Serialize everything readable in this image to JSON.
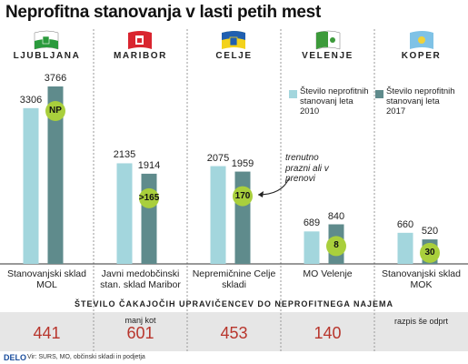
{
  "chart_data": {
    "type": "bar",
    "title": "Neprofitna stanovanja v lasti petih mest",
    "categories": [
      "LJUBLJANA",
      "MARIBOR",
      "CELJE",
      "VELENJE",
      "KOPER"
    ],
    "series": [
      {
        "name": "Število neprofitnih stanovanj leta 2010",
        "color": "#a3d6dd",
        "values": [
          3306,
          2135,
          2075,
          689,
          660
        ]
      },
      {
        "name": "Število neprofitnih stanovanj leta 2017",
        "color": "#5f8b8c",
        "values": [
          3766,
          1914,
          1959,
          840,
          520
        ]
      }
    ],
    "vacant_labels": [
      "NP",
      ">165",
      170,
      8,
      30
    ],
    "vacant_color": "#a9cf3c",
    "annotation": "trenutno prazni ali v prenovi",
    "owners": [
      "Stanovanjski sklad MOL",
      "Javni medobčinski stan. sklad Maribor",
      "Nepremičnine Celje skladi",
      "MO Velenje",
      "Stanovanjski sklad MOK"
    ],
    "waiting": {
      "title": "ŠTEVILO ČAKAJOČIH UPRAVIČENCEV DO NEPROFITNEGA NAJEMA",
      "items": [
        {
          "value": 441
        },
        {
          "prefix": "manj kot",
          "value": 601
        },
        {
          "value": 453
        },
        {
          "value": 140
        },
        {
          "note": "razpis še odprt"
        }
      ]
    },
    "footer": {
      "brand": "DELO",
      "source": "Vir: SURS, MO, občinski skladi in podjetja"
    }
  }
}
